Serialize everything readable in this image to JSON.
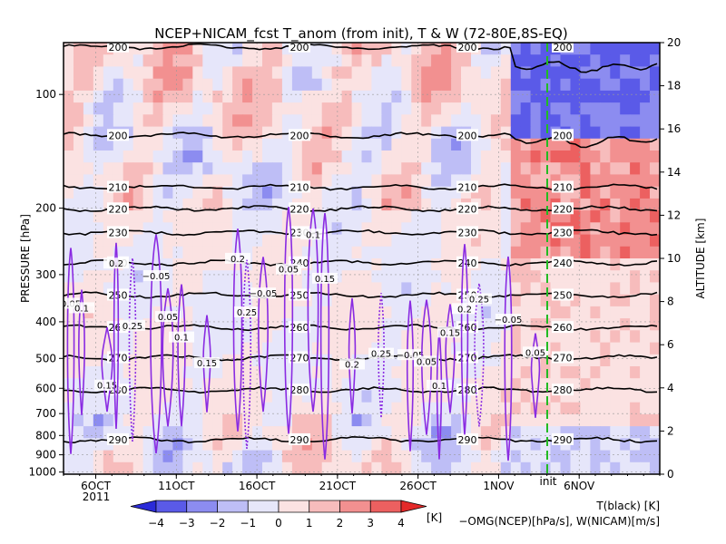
{
  "chart_data": {
    "type": "heatmap",
    "title": "NCEP+NICAM_fcst T_anom (from init), T & W  (72-80E,8S-EQ)",
    "ylabel": "PRESSURE [hPa]",
    "ylabel_right": "ALTITUDE [km]",
    "x_ticks": [
      "6OCT",
      "11OCT",
      "16OCT",
      "21OCT",
      "26OCT",
      "1NOV",
      "6NOV"
    ],
    "x_year": "2011",
    "x_range": [
      "2011-10-04",
      "2011-11-10"
    ],
    "init_label": "init",
    "init_date": "2011-11-01",
    "y_ticks_pressure": [
      "100",
      "200",
      "300",
      "400",
      "500",
      "600",
      "700",
      "800",
      "900",
      "1000"
    ],
    "y_ticks_altitude": [
      "0",
      "2",
      "4",
      "6",
      "8",
      "10",
      "12",
      "14",
      "16",
      "18",
      "20"
    ],
    "colorbar": {
      "ticks": [
        "−4",
        "−3",
        "−2",
        "−1",
        "0",
        "1",
        "2",
        "3",
        "4"
      ],
      "unit": "[K]",
      "colors": [
        "#2b2bd8",
        "#5a5ae8",
        "#8c8cf0",
        "#bebef6",
        "#e6e6fa",
        "#fbe2e2",
        "#f7bcbc",
        "#f29090",
        "#ec6060",
        "#e42a2a"
      ]
    },
    "temperature_contours_K": [
      {
        "label": "200",
        "altitude_km": 19.8
      },
      {
        "label": "200",
        "altitude_km": 15.7
      },
      {
        "label": "210",
        "altitude_km": 13.3
      },
      {
        "label": "220",
        "altitude_km": 12.3
      },
      {
        "label": "230",
        "altitude_km": 11.2
      },
      {
        "label": "240",
        "altitude_km": 9.8
      },
      {
        "label": "250",
        "altitude_km": 8.3
      },
      {
        "label": "260",
        "altitude_km": 6.8
      },
      {
        "label": "270",
        "altitude_km": 5.4
      },
      {
        "label": "280",
        "altitude_km": 3.9
      },
      {
        "label": "290",
        "altitude_km": 1.6
      }
    ],
    "w_contour_labels": [
      "0.05",
      "0.1",
      "0.15",
      "0.2",
      "0.25",
      "−0.05"
    ],
    "legend_T": "T(black) [K]",
    "legend_W": "−OMG(NCEP)[hPa/s], W(NICAM)[m/s]"
  }
}
